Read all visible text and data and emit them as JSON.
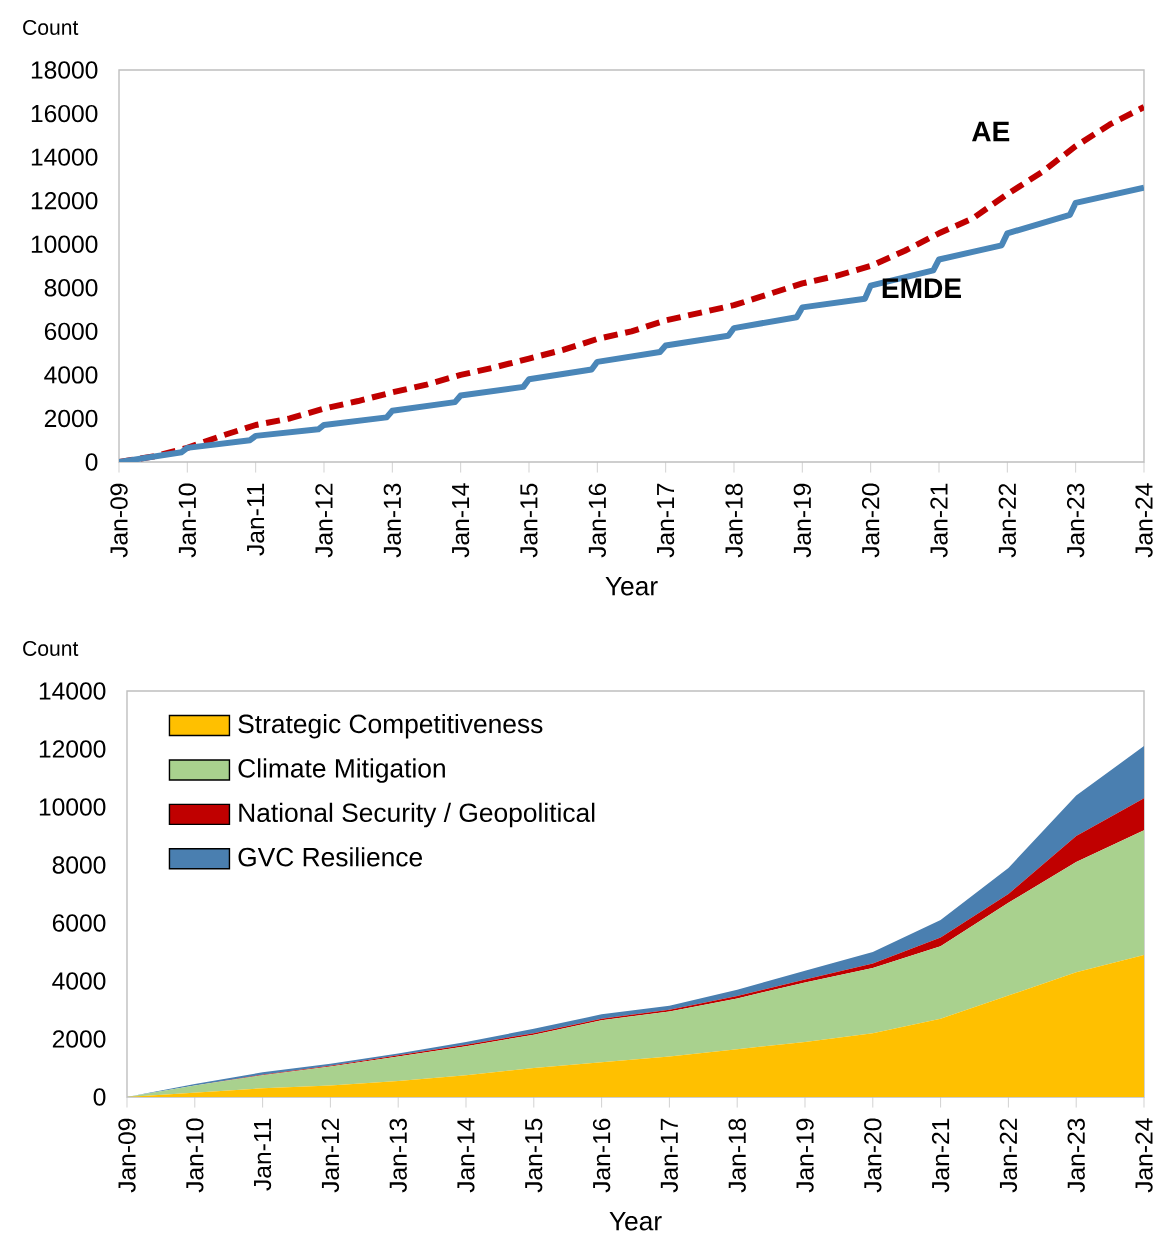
{
  "chart_data": [
    {
      "type": "line",
      "ylabel": "Count",
      "xlabel": "Year",
      "xlim": [
        "2009-01",
        "2024-01"
      ],
      "ylim": [
        0,
        18000
      ],
      "yticks": [
        0,
        2000,
        4000,
        6000,
        8000,
        10000,
        12000,
        14000,
        16000,
        18000
      ],
      "xticks": [
        {
          "value": "2009-01",
          "label": "Jan-09"
        },
        {
          "value": "2010-01",
          "label": "Jan-10"
        },
        {
          "value": "2011-01",
          "label": "Jan-11"
        },
        {
          "value": "2012-01",
          "label": "Jan-12"
        },
        {
          "value": "2013-01",
          "label": "Jan-13"
        },
        {
          "value": "2014-01",
          "label": "Jan-14"
        },
        {
          "value": "2015-01",
          "label": "Jan-15"
        },
        {
          "value": "2016-01",
          "label": "Jan-16"
        },
        {
          "value": "2017-01",
          "label": "Jan-17"
        },
        {
          "value": "2018-01",
          "label": "Jan-18"
        },
        {
          "value": "2019-01",
          "label": "Jan-19"
        },
        {
          "value": "2020-01",
          "label": "Jan-20"
        },
        {
          "value": "2021-01",
          "label": "Jan-21"
        },
        {
          "value": "2022-01",
          "label": "Jan-22"
        },
        {
          "value": "2023-01",
          "label": "Jan-23"
        },
        {
          "value": "2024-01",
          "label": "Jan-24"
        }
      ],
      "marker": "none",
      "series": [
        {
          "name": "AE",
          "color": "#c00000",
          "line_style": "dashed",
          "x": [
            "2009-01",
            "2009-07",
            "2010-01",
            "2010-07",
            "2011-01",
            "2011-07",
            "2012-01",
            "2012-07",
            "2013-01",
            "2013-07",
            "2014-01",
            "2014-07",
            "2015-01",
            "2015-07",
            "2016-01",
            "2016-07",
            "2017-01",
            "2017-07",
            "2018-01",
            "2018-07",
            "2019-01",
            "2019-07",
            "2020-01",
            "2020-07",
            "2021-01",
            "2021-07",
            "2022-01",
            "2022-07",
            "2023-01",
            "2023-07",
            "2024-01"
          ],
          "values": [
            0,
            250,
            650,
            1200,
            1700,
            2000,
            2450,
            2800,
            3200,
            3550,
            4000,
            4350,
            4750,
            5150,
            5650,
            6000,
            6500,
            6850,
            7200,
            7700,
            8200,
            8550,
            9000,
            9700,
            10500,
            11200,
            12300,
            13300,
            14500,
            15500,
            16300
          ]
        },
        {
          "name": "EMDE",
          "color": "#4a86b8",
          "line_style": "solid",
          "x": [
            "2009-01",
            "2009-12",
            "2010-01",
            "2010-12",
            "2011-01",
            "2011-12",
            "2012-01",
            "2012-12",
            "2013-01",
            "2013-12",
            "2014-01",
            "2014-12",
            "2015-01",
            "2015-12",
            "2016-01",
            "2016-12",
            "2017-01",
            "2017-12",
            "2018-01",
            "2018-12",
            "2019-01",
            "2019-12",
            "2020-01",
            "2020-12",
            "2021-01",
            "2021-12",
            "2022-01",
            "2022-12",
            "2023-01",
            "2024-01"
          ],
          "values": [
            0,
            450,
            650,
            1000,
            1200,
            1500,
            1700,
            2050,
            2350,
            2750,
            3050,
            3450,
            3800,
            4250,
            4600,
            5050,
            5350,
            5800,
            6150,
            6650,
            7100,
            7500,
            8100,
            8800,
            9300,
            9950,
            10500,
            11350,
            11900,
            12600
          ]
        }
      ]
    },
    {
      "type": "area",
      "stacked": true,
      "ylabel": "Count",
      "xlabel": "Year",
      "legend": "top left",
      "xlim": [
        "2009-01",
        "2024-01"
      ],
      "ylim": [
        0,
        14000
      ],
      "yticks": [
        0,
        2000,
        4000,
        6000,
        8000,
        10000,
        12000,
        14000
      ],
      "xticks": [
        {
          "value": "2009-01",
          "label": "Jan-09"
        },
        {
          "value": "2010-01",
          "label": "Jan-10"
        },
        {
          "value": "2011-01",
          "label": "Jan-11"
        },
        {
          "value": "2012-01",
          "label": "Jan-12"
        },
        {
          "value": "2013-01",
          "label": "Jan-13"
        },
        {
          "value": "2014-01",
          "label": "Jan-14"
        },
        {
          "value": "2015-01",
          "label": "Jan-15"
        },
        {
          "value": "2016-01",
          "label": "Jan-16"
        },
        {
          "value": "2017-01",
          "label": "Jan-17"
        },
        {
          "value": "2018-01",
          "label": "Jan-18"
        },
        {
          "value": "2019-01",
          "label": "Jan-19"
        },
        {
          "value": "2020-01",
          "label": "Jan-20"
        },
        {
          "value": "2021-01",
          "label": "Jan-21"
        },
        {
          "value": "2022-01",
          "label": "Jan-22"
        },
        {
          "value": "2023-01",
          "label": "Jan-23"
        },
        {
          "value": "2024-01",
          "label": "Jan-24"
        }
      ],
      "x": [
        "2009-01",
        "2010-01",
        "2011-01",
        "2012-01",
        "2013-01",
        "2014-01",
        "2015-01",
        "2016-01",
        "2017-01",
        "2018-01",
        "2019-01",
        "2020-01",
        "2021-01",
        "2022-01",
        "2023-01",
        "2024-01"
      ],
      "series": [
        {
          "name": "Strategic Competitiveness",
          "color": "#ffc000",
          "values": [
            0,
            150,
            300,
            400,
            550,
            750,
            1000,
            1200,
            1400,
            1650,
            1900,
            2200,
            2700,
            3500,
            4300,
            4900
          ]
        },
        {
          "name": "Climate Mitigation",
          "color": "#a9d18e",
          "values": [
            0,
            250,
            450,
            650,
            850,
            1000,
            1150,
            1450,
            1550,
            1750,
            2050,
            2250,
            2500,
            3200,
            3800,
            4300
          ]
        },
        {
          "name": "National Security / Geopolitical",
          "color": "#c00000",
          "values": [
            0,
            0,
            20,
            30,
            40,
            50,
            50,
            50,
            60,
            80,
            100,
            150,
            300,
            300,
            900,
            1100
          ]
        },
        {
          "name": "GVC Resilience",
          "color": "#4a7fb0",
          "values": [
            0,
            50,
            80,
            70,
            60,
            100,
            150,
            150,
            140,
            220,
            300,
            400,
            600,
            900,
            1400,
            1800
          ]
        }
      ]
    }
  ]
}
